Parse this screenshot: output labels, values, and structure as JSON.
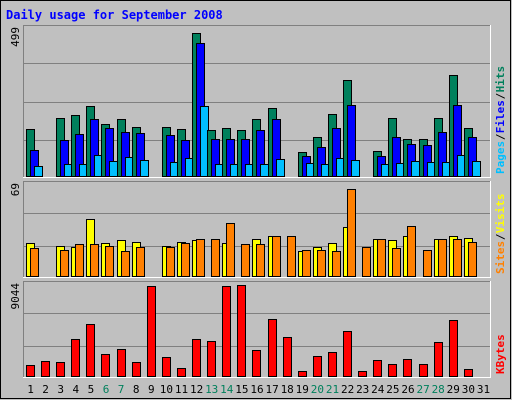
{
  "chart_data": {
    "type": "bar",
    "title": "Daily usage for September 2008",
    "categories": [
      "1",
      "2",
      "3",
      "4",
      "5",
      "6",
      "7",
      "8",
      "9",
      "10",
      "11",
      "12",
      "13",
      "14",
      "15",
      "16",
      "17",
      "18",
      "19",
      "20",
      "21",
      "22",
      "23",
      "24",
      "25",
      "26",
      "27",
      "28",
      "29",
      "30",
      "31"
    ],
    "weekend_days": [
      "6",
      "7",
      "13",
      "14",
      "20",
      "21",
      "27",
      "28"
    ],
    "panels": [
      {
        "id": "hits-files-pages",
        "ymax_label": "499",
        "ylim": [
          0,
          499
        ],
        "series": [
          {
            "name": "Hits",
            "color": "#00805c",
            "values": [
              161,
              0,
              198,
              208,
              237,
              177,
              192,
              167,
              0,
              167,
              158,
              485,
              156,
              162,
              156,
              194,
              232,
              0,
              83,
              133,
              212,
              327,
              0,
              84,
              198,
              127,
              127,
              198,
              344,
              162,
              0
            ]
          },
          {
            "name": "Files",
            "color": "#0000ff",
            "values": [
              89,
              0,
              121,
              143,
              192,
              162,
              150,
              147,
              0,
              140,
              123,
              451,
              125,
              125,
              125,
              155,
              195,
              0,
              69,
              100,
              162,
              242,
              0,
              68,
              131,
              110,
              105,
              150,
              242,
              132,
              0
            ]
          },
          {
            "name": "Pages",
            "color": "#00bfff",
            "values": [
              35,
              0,
              42,
              40,
              72,
              50,
              65,
              55,
              0,
              47,
              61,
              238,
              40,
              40,
              42,
              40,
              57,
              0,
              45,
              40,
              60,
              55,
              0,
              40,
              45,
              50,
              48,
              48,
              70,
              50,
              0
            ]
          }
        ],
        "side_label": [
          "Pages",
          "Files",
          "Hits"
        ],
        "side_label_colors": [
          "#00bfff",
          "#0000ff",
          "#00805c"
        ]
      },
      {
        "id": "visits-sites",
        "ymax_label": "69",
        "ylim": [
          0,
          69
        ],
        "series": [
          {
            "name": "Visits",
            "color": "#ffff00",
            "values": [
              25,
              0,
              23,
              22,
              43,
              25,
              27,
              26,
              0,
              23,
              26,
              27,
              0,
              25,
              0,
              28,
              30,
              0,
              19,
              22,
              25,
              37,
              0,
              28,
              27,
              30,
              0,
              28,
              30,
              29,
              0
            ]
          },
          {
            "name": "Sites",
            "color": "#ff8000",
            "values": [
              21,
              0,
              20,
              24,
              24,
              23,
              19,
              22,
              0,
              22,
              25,
              28,
              28,
              40,
              24,
              24,
              30,
              30,
              20,
              20,
              19,
              66,
              22,
              28,
              21,
              38,
              20,
              28,
              28,
              26,
              0
            ]
          }
        ],
        "side_label": [
          "Sites",
          "Visits"
        ],
        "side_label_colors": [
          "#ff8000",
          "#ffff00"
        ]
      },
      {
        "id": "kbytes",
        "ymax_label": "9044",
        "ylim": [
          0,
          9044
        ],
        "series": [
          {
            "name": "KBytes",
            "color": "#ff0000",
            "values": [
              1050,
              1530,
              1410,
              3680,
              5180,
              2200,
              2720,
              1400,
              8950,
              1840,
              790,
              3650,
              3440,
              8950,
              9044,
              2600,
              5710,
              3870,
              500,
              1960,
              2350,
              4500,
              470,
              1550,
              1240,
              1650,
              1230,
              3350,
              5600,
              700,
              0
            ]
          }
        ],
        "side_label": [
          "KBytes"
        ],
        "side_label_colors": [
          "#ff0000"
        ]
      }
    ],
    "grid": true,
    "legend": "right-vertical",
    "colors": {
      "background": "#c0c0c0",
      "plot_background": "#c0c0c0",
      "title": "#0000ff",
      "weekday_label": "#000000",
      "weekend_label": "#00805c",
      "gridline": "#808080"
    }
  }
}
